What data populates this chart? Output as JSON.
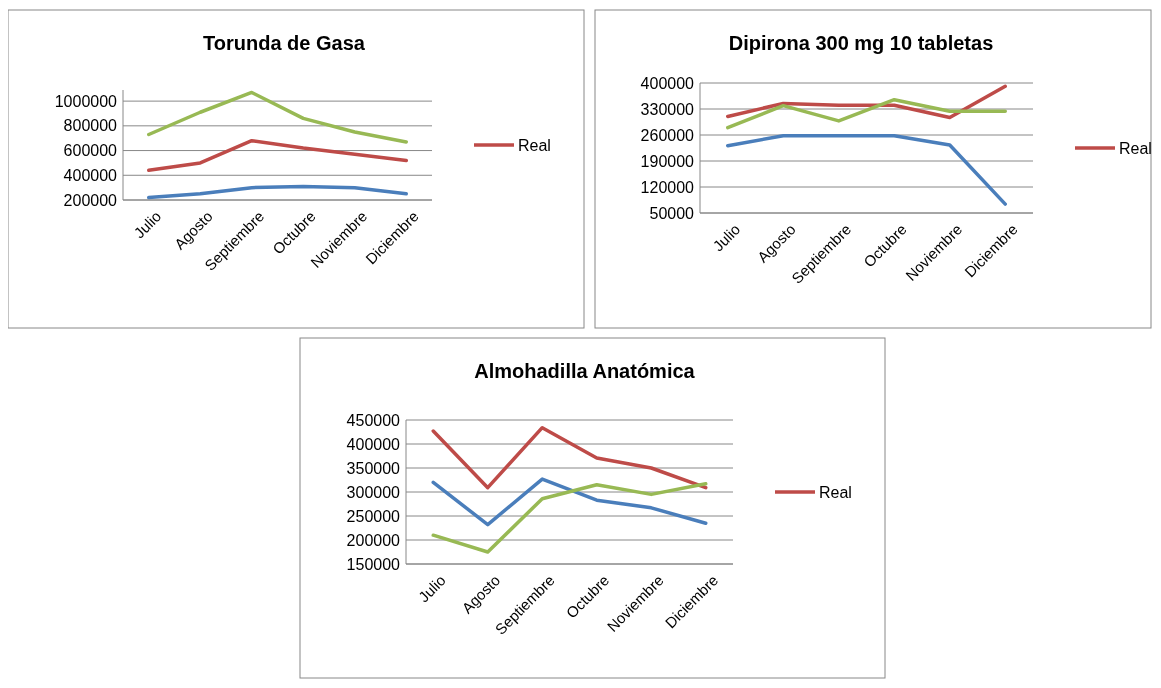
{
  "chart_data": [
    {
      "type": "line",
      "title": "Torunda de Gasa",
      "categories": [
        "Julio",
        "Agosto",
        "Septiembre",
        "Octubre",
        "Noviembre",
        "Diciembre"
      ],
      "ylim": [
        200000,
        1090000
      ],
      "yticks": [
        200000,
        400000,
        600000,
        800000,
        1000000
      ],
      "grid": "y",
      "legend": "right",
      "series": [
        {
          "color": "#98b954",
          "values": [
            730000,
            910000,
            1070000,
            860000,
            750000,
            670000
          ]
        },
        {
          "name": "Real",
          "color": "#be4b48",
          "values": [
            440000,
            500000,
            680000,
            620000,
            570000,
            520000
          ]
        },
        {
          "color": "#4a7ebb",
          "values": [
            220000,
            250000,
            300000,
            310000,
            300000,
            250000
          ]
        }
      ]
    },
    {
      "type": "line",
      "title": "Dipirona 300 mg 10 tabletas",
      "categories": [
        "Julio",
        "Agosto",
        "Septiembre",
        "Octubre",
        "Noviembre",
        "Diciembre"
      ],
      "ylim": [
        50000,
        400000
      ],
      "yticks": [
        50000,
        120000,
        190000,
        260000,
        330000,
        400000
      ],
      "grid": "y",
      "legend": "right",
      "series": [
        {
          "color": "#4a7ebb",
          "values": [
            231000,
            258000,
            258000,
            258000,
            233000,
            74000
          ]
        },
        {
          "name": "Real",
          "color": "#be4b48",
          "values": [
            310000,
            345000,
            340000,
            340000,
            307000,
            391000
          ]
        },
        {
          "color": "#98b954",
          "values": [
            280000,
            339000,
            298000,
            355000,
            324000,
            324000
          ]
        }
      ]
    },
    {
      "type": "line",
      "title": "Almohadilla Anatómica",
      "categories": [
        "Julio",
        "Agosto",
        "Septiembre",
        "Octubre",
        "Noviembre",
        "Diciembre"
      ],
      "ylim": [
        150000,
        450000
      ],
      "yticks": [
        150000,
        200000,
        250000,
        300000,
        350000,
        400000,
        450000
      ],
      "grid": "y",
      "legend": "right",
      "series": [
        {
          "color": "#4a7ebb",
          "values": [
            320000,
            232000,
            327000,
            283000,
            267000,
            235000
          ]
        },
        {
          "name": "Real",
          "color": "#be4b48",
          "values": [
            427000,
            309000,
            434000,
            371000,
            350000,
            309000
          ]
        },
        {
          "color": "#98b954",
          "values": [
            210000,
            175000,
            286000,
            315000,
            295000,
            317000
          ]
        }
      ]
    }
  ]
}
